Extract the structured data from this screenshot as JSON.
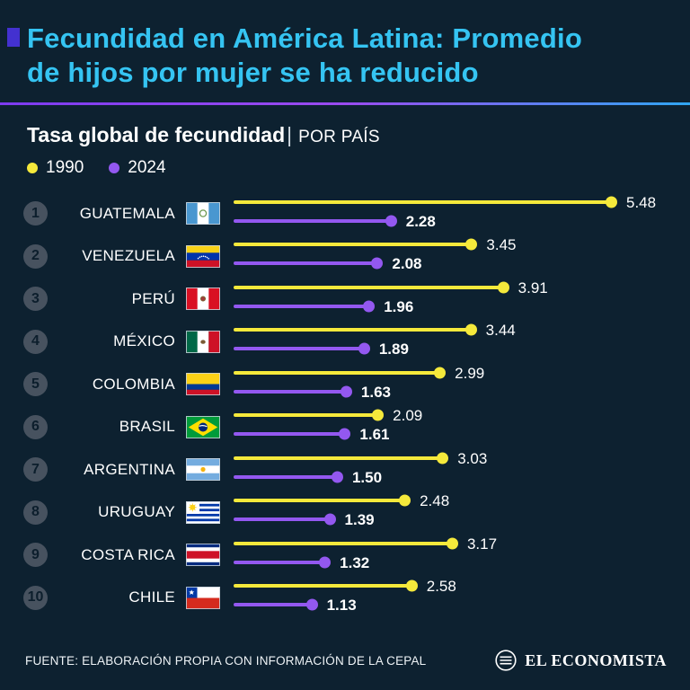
{
  "header": {
    "title_line1": "Fecundidad en América Latina: Promedio",
    "title_line2": "de hijos por mujer se ha reducido"
  },
  "subtitle": {
    "bold": "Tasa global de fecundidad",
    "separator": "|",
    "regular": "POR PAÍS"
  },
  "legend": [
    {
      "label": "1990",
      "color": "#f5e93b"
    },
    {
      "label": "2024",
      "color": "#9358f0"
    }
  ],
  "chart_data": {
    "type": "bar",
    "variant": "lollipop-comparison",
    "title": "Tasa global de fecundidad | POR PAÍS",
    "series_labels": [
      "1990",
      "2024"
    ],
    "xlim": [
      0,
      5.48
    ],
    "colors": {
      "1990": "#f5e93b",
      "2024": "#9358f0"
    },
    "categories": [
      "GUATEMALA",
      "VENEZUELA",
      "PERÚ",
      "MÉXICO",
      "COLOMBIA",
      "BRASIL",
      "ARGENTINA",
      "URUGUAY",
      "COSTA RICA",
      "CHILE"
    ],
    "rows": [
      {
        "rank": "1",
        "country": "GUATEMALA",
        "flag": "guatemala",
        "v1990": 5.48,
        "v2024": 2.28
      },
      {
        "rank": "2",
        "country": "VENEZUELA",
        "flag": "venezuela",
        "v1990": 3.45,
        "v2024": 2.08
      },
      {
        "rank": "3",
        "country": "PERÚ",
        "flag": "peru",
        "v1990": 3.91,
        "v2024": 1.96
      },
      {
        "rank": "4",
        "country": "MÉXICO",
        "flag": "mexico",
        "v1990": 3.44,
        "v2024": 1.89
      },
      {
        "rank": "5",
        "country": "COLOMBIA",
        "flag": "colombia",
        "v1990": 2.99,
        "v2024": 1.63
      },
      {
        "rank": "6",
        "country": "BRASIL",
        "flag": "brasil",
        "v1990": 2.09,
        "v2024": 1.61
      },
      {
        "rank": "7",
        "country": "ARGENTINA",
        "flag": "argentina",
        "v1990": 3.03,
        "v2024": 1.5
      },
      {
        "rank": "8",
        "country": "URUGUAY",
        "flag": "uruguay",
        "v1990": 2.48,
        "v2024": 1.39
      },
      {
        "rank": "9",
        "country": "COSTA RICA",
        "flag": "costa_rica",
        "v1990": 3.17,
        "v2024": 1.32
      },
      {
        "rank": "10",
        "country": "CHILE",
        "flag": "chile",
        "v1990": 2.58,
        "v2024": 1.13
      }
    ]
  },
  "footer": {
    "source": "FUENTE: ELABORACIÓN PROPIA CON INFORMACIÓN DE LA CEPAL",
    "brand": "EL ECONOMISTA"
  },
  "colors": {
    "background": "#0d2130",
    "title": "#35c4f2",
    "bullet": "#4331d0",
    "divider_from": "#7d3bf0",
    "divider_to": "#30a6f2",
    "series_1990": "#f5e93b",
    "series_2024": "#9358f0"
  }
}
